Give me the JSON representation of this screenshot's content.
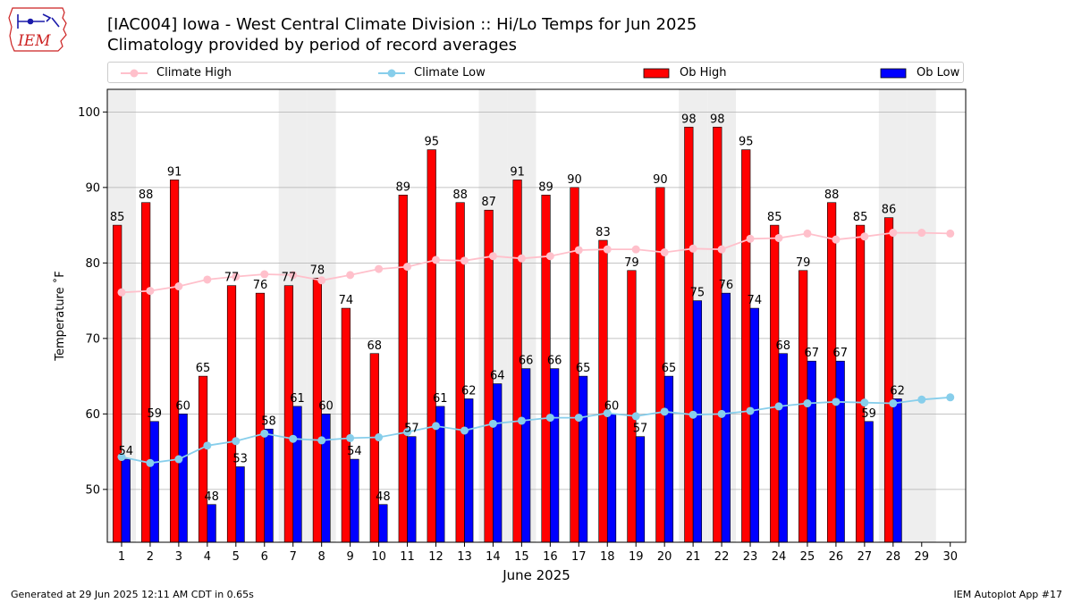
{
  "header": {
    "title": "[IAC004] Iowa - West Central Climate Division :: Hi/Lo Temps for Jun 2025",
    "subtitle": "Climatology provided by period of record averages",
    "logo_text": "IEM"
  },
  "footer": {
    "generated": "Generated at 29 Jun 2025 12:11 AM CDT in 0.65s",
    "app": "IEM Autoplot App #17"
  },
  "legend": {
    "items": [
      {
        "label": "Climate High",
        "kind": "line",
        "color": "#ffc0cb"
      },
      {
        "label": "Climate Low",
        "kind": "line",
        "color": "#87ceeb"
      },
      {
        "label": "Ob High",
        "kind": "bar",
        "color": "#ff0000"
      },
      {
        "label": "Ob Low",
        "kind": "bar",
        "color": "#0000ff"
      }
    ]
  },
  "chart_data": {
    "type": "bar",
    "xlabel": "June 2025",
    "ylabel": "Temperature ˚F",
    "ylim": [
      43,
      103
    ],
    "yticks": [
      50,
      60,
      70,
      80,
      90,
      100
    ],
    "grid": "horizontal",
    "legend_position": "top",
    "weekend_shading_color": "#eeeeee",
    "weekend_days": [
      1,
      7,
      8,
      14,
      15,
      21,
      22,
      28,
      29
    ],
    "days": [
      1,
      2,
      3,
      4,
      5,
      6,
      7,
      8,
      9,
      10,
      11,
      12,
      13,
      14,
      15,
      16,
      17,
      18,
      19,
      20,
      21,
      22,
      23,
      24,
      25,
      26,
      27,
      28,
      29,
      30
    ],
    "series": [
      {
        "name": "Ob High",
        "kind": "bar",
        "color": "#ff0000",
        "values": [
          85,
          88,
          91,
          65,
          77,
          76,
          77,
          78,
          74,
          68,
          89,
          95,
          88,
          87,
          91,
          89,
          90,
          83,
          79,
          90,
          98,
          98,
          95,
          85,
          79,
          88,
          85,
          86,
          null,
          null
        ]
      },
      {
        "name": "Ob Low",
        "kind": "bar",
        "color": "#0000ff",
        "values": [
          54,
          59,
          60,
          48,
          53,
          58,
          61,
          60,
          54,
          48,
          57,
          61,
          62,
          64,
          66,
          66,
          65,
          60,
          57,
          65,
          75,
          76,
          74,
          68,
          67,
          67,
          59,
          62,
          null,
          null
        ]
      },
      {
        "name": "Climate High",
        "kind": "line",
        "color": "#ffc0cb",
        "values": [
          76.1,
          76.3,
          76.9,
          77.8,
          78.2,
          78.5,
          78.4,
          77.7,
          78.4,
          79.2,
          79.5,
          80.4,
          80.3,
          80.9,
          80.6,
          80.9,
          81.7,
          81.8,
          81.8,
          81.4,
          81.9,
          81.8,
          83.2,
          83.3,
          83.9,
          83.1,
          83.5,
          84.0,
          84.0,
          83.9
        ]
      },
      {
        "name": "Climate Low",
        "kind": "line",
        "color": "#87ceeb",
        "values": [
          54.3,
          53.5,
          54.0,
          55.8,
          56.4,
          57.4,
          56.7,
          56.5,
          56.8,
          56.9,
          57.6,
          58.4,
          57.8,
          58.7,
          59.1,
          59.5,
          59.5,
          60.1,
          59.7,
          60.3,
          59.9,
          60.0,
          60.4,
          61.0,
          61.4,
          61.6,
          61.5,
          61.4,
          61.9,
          62.2
        ]
      }
    ]
  }
}
